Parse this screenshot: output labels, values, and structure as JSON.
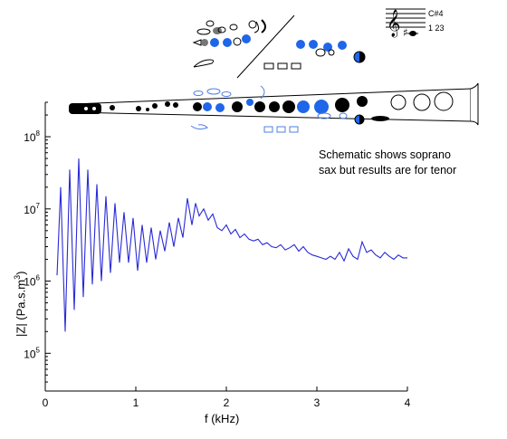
{
  "chart_data": {
    "type": "line",
    "xlabel": "f (kHz)",
    "ylabel": "|Z| (Pa.s.m",
    "ylabel_sup": "3",
    "ylabel_end": ")",
    "xlim": [
      0,
      4
    ],
    "ylim": [
      30000,
      300000000
    ],
    "yscale": "log",
    "x_ticks": [
      0,
      1,
      2,
      3,
      4
    ],
    "y_ticks": [
      100000,
      1000000,
      10000000,
      100000000
    ],
    "y_tick_labels": [
      {
        "base": "10",
        "exp": "5"
      },
      {
        "base": "10",
        "exp": "6"
      },
      {
        "base": "10",
        "exp": "7"
      },
      {
        "base": "10",
        "exp": "8"
      }
    ],
    "series": [
      {
        "color": "#2a2ad6",
        "x": [
          0.13,
          0.17,
          0.22,
          0.27,
          0.32,
          0.37,
          0.42,
          0.47,
          0.52,
          0.57,
          0.62,
          0.67,
          0.72,
          0.77,
          0.82,
          0.87,
          0.92,
          0.97,
          1.02,
          1.07,
          1.12,
          1.17,
          1.22,
          1.27,
          1.32,
          1.37,
          1.42,
          1.47,
          1.52,
          1.57,
          1.62,
          1.66,
          1.7,
          1.75,
          1.8,
          1.85,
          1.9,
          1.95,
          2.0,
          2.05,
          2.1,
          2.15,
          2.2,
          2.25,
          2.3,
          2.35,
          2.4,
          2.45,
          2.5,
          2.55,
          2.6,
          2.65,
          2.7,
          2.75,
          2.8,
          2.85,
          2.9,
          2.95,
          3.0,
          3.05,
          3.1,
          3.15,
          3.2,
          3.25,
          3.3,
          3.35,
          3.4,
          3.45,
          3.5,
          3.55,
          3.6,
          3.65,
          3.7,
          3.75,
          3.8,
          3.85,
          3.9,
          3.95,
          4.0
        ],
        "y": [
          1200000,
          20000000,
          200000,
          35000000,
          400000,
          50000000,
          600000,
          35000000,
          900000,
          22000000,
          1000000,
          15000000,
          1300000,
          12000000,
          1800000,
          9000000,
          1800000,
          7500000,
          1400000,
          6000000,
          1800000,
          5500000,
          2000000,
          5000000,
          2600000,
          6500000,
          3000000,
          7500000,
          4000000,
          14000000,
          6000000,
          12000000,
          8000000,
          10000000,
          7000000,
          8500000,
          5500000,
          5000000,
          6000000,
          4500000,
          5200000,
          4000000,
          4500000,
          3800000,
          3600000,
          3800000,
          3200000,
          3400000,
          3000000,
          2900000,
          3200000,
          2700000,
          2900000,
          3200000,
          2600000,
          3000000,
          2500000,
          2300000,
          2200000,
          2100000,
          2000000,
          2200000,
          2000000,
          2500000,
          1900000,
          2800000,
          2200000,
          2000000,
          3500000,
          2500000,
          2700000,
          2300000,
          2100000,
          2500000,
          2200000,
          2000000,
          2300000,
          2100000,
          2100000
        ]
      }
    ]
  },
  "annotation": [
    "Schematic shows soprano",
    "sax but results are for tenor"
  ],
  "note_label": "C#4",
  "fingering_label": "1 23"
}
